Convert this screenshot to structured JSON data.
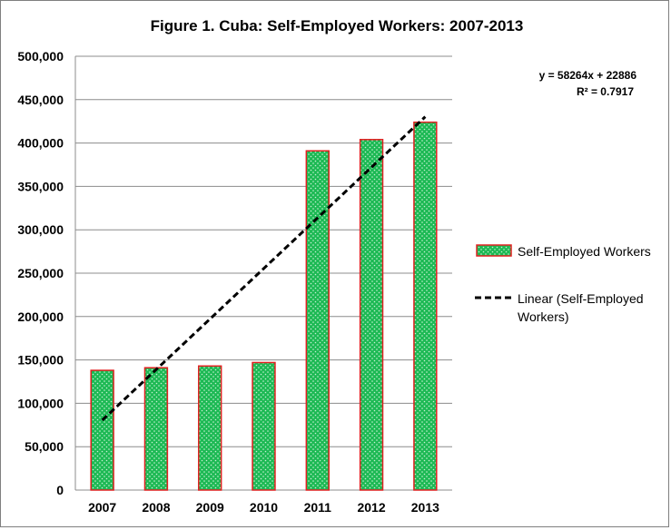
{
  "chart_data": {
    "type": "bar",
    "title": "Figure 1. Cuba: Self-Employed Workers: 2007-2013",
    "categories": [
      "2007",
      "2008",
      "2009",
      "2010",
      "2011",
      "2012",
      "2013"
    ],
    "series": [
      {
        "name": "Self-Employed Workers",
        "values": [
          138000,
          141000,
          143000,
          147000,
          391000,
          404000,
          424000
        ],
        "color": "#1db954",
        "border_color": "#e02020"
      }
    ],
    "trendline": {
      "name": "Linear (Self-Employed Workers)",
      "type": "linear",
      "style": "dashed",
      "color": "#000000",
      "equation": "y = 58264x + 22886",
      "r_squared": "R² = 0.7917"
    },
    "ylim": [
      0,
      500000
    ],
    "y_ticks": [
      "0",
      "50,000",
      "100,000",
      "150,000",
      "200,000",
      "250,000",
      "300,000",
      "350,000",
      "400,000",
      "450,000",
      "500,000"
    ],
    "xlabel": "",
    "ylabel": "",
    "grid": true,
    "legend_position": "right"
  }
}
